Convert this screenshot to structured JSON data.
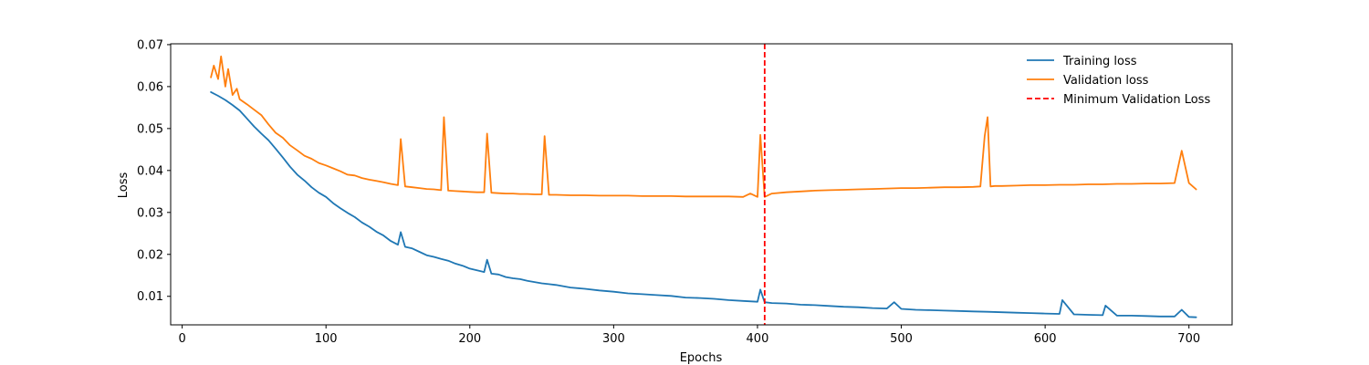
{
  "chart_data": {
    "type": "line",
    "title": "",
    "xlabel": "Epochs",
    "ylabel": "Loss",
    "xlim": [
      -8,
      730
    ],
    "ylim": [
      0.0032,
      0.0702
    ],
    "xticks": [
      0,
      100,
      200,
      300,
      400,
      500,
      600,
      700
    ],
    "yticks": [
      0.01,
      0.02,
      0.03,
      0.04,
      0.05,
      0.06,
      0.07
    ],
    "grid": false,
    "legend_position": "top-right",
    "series": [
      {
        "name": "Training loss",
        "color": "#1f77b4",
        "style": "solid",
        "x": [
          20,
          25,
          30,
          35,
          40,
          45,
          50,
          55,
          60,
          65,
          70,
          75,
          80,
          85,
          90,
          95,
          100,
          105,
          110,
          115,
          120,
          125,
          130,
          135,
          140,
          145,
          150,
          152,
          155,
          160,
          165,
          170,
          175,
          180,
          185,
          190,
          195,
          200,
          205,
          210,
          212,
          215,
          220,
          225,
          230,
          235,
          240,
          245,
          250,
          255,
          260,
          270,
          280,
          290,
          300,
          310,
          320,
          330,
          340,
          350,
          360,
          370,
          380,
          390,
          400,
          402,
          405,
          410,
          420,
          430,
          440,
          450,
          460,
          470,
          480,
          490,
          495,
          500,
          510,
          520,
          530,
          540,
          550,
          560,
          570,
          580,
          590,
          600,
          610,
          612,
          620,
          630,
          640,
          642,
          650,
          660,
          670,
          680,
          690,
          695,
          700,
          705
        ],
        "y": [
          0.0587,
          0.0578,
          0.0568,
          0.0556,
          0.0543,
          0.0524,
          0.0505,
          0.0488,
          0.0472,
          0.0452,
          0.0431,
          0.0409,
          0.039,
          0.0376,
          0.036,
          0.0347,
          0.0337,
          0.0322,
          0.031,
          0.0299,
          0.0289,
          0.0276,
          0.0266,
          0.0254,
          0.0245,
          0.0232,
          0.0223,
          0.0253,
          0.0218,
          0.0214,
          0.0206,
          0.0198,
          0.0194,
          0.0189,
          0.0185,
          0.0178,
          0.0173,
          0.0166,
          0.0162,
          0.0158,
          0.0187,
          0.0154,
          0.0152,
          0.0146,
          0.0143,
          0.0141,
          0.0137,
          0.0134,
          0.0131,
          0.0129,
          0.0127,
          0.0121,
          0.0118,
          0.0114,
          0.0111,
          0.0107,
          0.0105,
          0.0103,
          0.0101,
          0.0097,
          0.0096,
          0.0094,
          0.0091,
          0.0089,
          0.0087,
          0.0116,
          0.0086,
          0.0084,
          0.0083,
          0.008,
          0.0079,
          0.0077,
          0.0075,
          0.0074,
          0.0072,
          0.0071,
          0.0086,
          0.007,
          0.0068,
          0.0067,
          0.0066,
          0.0065,
          0.0064,
          0.0063,
          0.0062,
          0.0061,
          0.006,
          0.0059,
          0.0058,
          0.0091,
          0.0057,
          0.0056,
          0.0055,
          0.0078,
          0.0054,
          0.0054,
          0.0053,
          0.0052,
          0.0052,
          0.0068,
          0.0051,
          0.005
        ]
      },
      {
        "name": "Validation loss",
        "color": "#ff7f0e",
        "style": "solid",
        "x": [
          20,
          22,
          25,
          27,
          30,
          32,
          35,
          38,
          40,
          45,
          50,
          55,
          60,
          65,
          70,
          75,
          80,
          85,
          90,
          95,
          100,
          105,
          110,
          115,
          120,
          125,
          130,
          135,
          140,
          145,
          150,
          152,
          155,
          160,
          165,
          170,
          175,
          180,
          182,
          185,
          190,
          195,
          200,
          205,
          210,
          212,
          215,
          220,
          225,
          230,
          235,
          240,
          245,
          250,
          252,
          255,
          260,
          270,
          280,
          290,
          300,
          310,
          320,
          330,
          340,
          350,
          360,
          370,
          380,
          390,
          395,
          400,
          402,
          405,
          410,
          420,
          430,
          440,
          450,
          460,
          470,
          480,
          490,
          500,
          510,
          520,
          530,
          540,
          550,
          555,
          558,
          560,
          562,
          565,
          570,
          580,
          590,
          600,
          610,
          620,
          630,
          640,
          650,
          660,
          670,
          680,
          690,
          695,
          700,
          705
        ],
        "y": [
          0.0622,
          0.065,
          0.0618,
          0.0672,
          0.06,
          0.0642,
          0.058,
          0.0595,
          0.057,
          0.0558,
          0.0545,
          0.0532,
          0.051,
          0.049,
          0.0478,
          0.046,
          0.0448,
          0.0435,
          0.0428,
          0.0418,
          0.0412,
          0.0405,
          0.0398,
          0.039,
          0.0388,
          0.0382,
          0.0378,
          0.0375,
          0.0372,
          0.0368,
          0.0365,
          0.0475,
          0.0362,
          0.036,
          0.0358,
          0.0356,
          0.0355,
          0.0353,
          0.0527,
          0.0352,
          0.0351,
          0.035,
          0.0349,
          0.0348,
          0.0348,
          0.0488,
          0.0347,
          0.0346,
          0.0345,
          0.0345,
          0.0344,
          0.0344,
          0.0343,
          0.0343,
          0.0482,
          0.0342,
          0.0342,
          0.0341,
          0.0341,
          0.034,
          0.034,
          0.034,
          0.0339,
          0.0339,
          0.0339,
          0.0338,
          0.0338,
          0.0338,
          0.0338,
          0.0337,
          0.0345,
          0.0337,
          0.0485,
          0.0337,
          0.0345,
          0.0348,
          0.035,
          0.0352,
          0.0353,
          0.0354,
          0.0355,
          0.0356,
          0.0357,
          0.0358,
          0.0358,
          0.0359,
          0.036,
          0.036,
          0.0361,
          0.0362,
          0.0482,
          0.0527,
          0.0362,
          0.0363,
          0.0363,
          0.0364,
          0.0365,
          0.0365,
          0.0366,
          0.0366,
          0.0367,
          0.0367,
          0.0368,
          0.0368,
          0.0369,
          0.0369,
          0.037,
          0.0447,
          0.037,
          0.0355
        ]
      }
    ],
    "vlines": [
      {
        "name": "Minimum Validation Loss",
        "x": 405,
        "color": "#ff0000",
        "style": "dashed"
      }
    ]
  }
}
